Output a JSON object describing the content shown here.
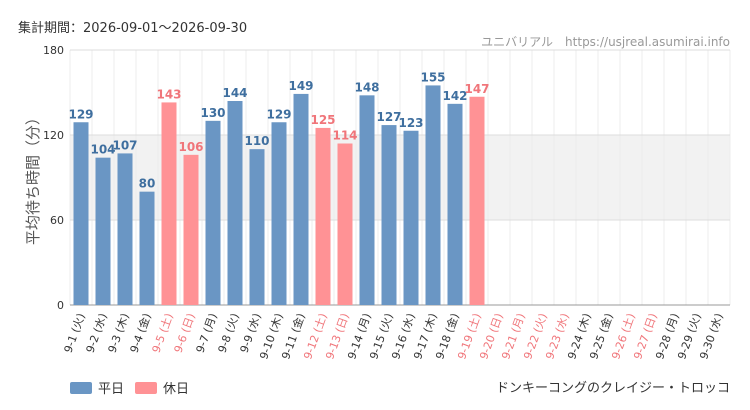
{
  "header": {
    "period": "集計期間：2026-09-01～2026-09-30",
    "site": "ユニバリアル　https://usjreal.asumirai.info"
  },
  "attraction": "ドンキーコングのクレイジー・トロッコ",
  "legend": {
    "weekday": {
      "label": "平日",
      "color": "#6a96c4"
    },
    "holiday": {
      "label": "休日",
      "color": "#ff9295"
    }
  },
  "colors": {
    "weekday_label": "#3f6f9f",
    "holiday_label": "#f0757a",
    "band": "#f2f2f2",
    "grid": "#dddddd"
  },
  "chart_data": {
    "type": "bar",
    "ylabel": "平均待ち時間（分）",
    "ylim": [
      0,
      180
    ],
    "yticks": [
      0,
      60,
      120,
      180
    ],
    "categories": [
      "9-1 (火)",
      "9-2 (水)",
      "9-3 (木)",
      "9-4 (金)",
      "9-5 (土)",
      "9-6 (日)",
      "9-7 (月)",
      "9-8 (火)",
      "9-9 (水)",
      "9-10 (木)",
      "9-11 (金)",
      "9-12 (土)",
      "9-13 (日)",
      "9-14 (月)",
      "9-15 (火)",
      "9-16 (水)",
      "9-17 (木)",
      "9-18 (金)",
      "9-19 (土)",
      "9-20 (日)",
      "9-21 (月)",
      "9-22 (火)",
      "9-23 (水)",
      "9-24 (木)",
      "9-25 (金)",
      "9-26 (土)",
      "9-27 (日)",
      "9-28 (月)",
      "9-29 (火)",
      "9-30 (水)"
    ],
    "values": [
      129,
      104,
      107,
      80,
      143,
      106,
      130,
      144,
      110,
      129,
      149,
      125,
      114,
      148,
      127,
      123,
      155,
      142,
      147,
      null,
      null,
      null,
      null,
      null,
      null,
      null,
      null,
      null,
      null,
      null
    ],
    "day_type": [
      "weekday",
      "weekday",
      "weekday",
      "weekday",
      "holiday",
      "holiday",
      "weekday",
      "weekday",
      "weekday",
      "weekday",
      "weekday",
      "holiday",
      "holiday",
      "weekday",
      "weekday",
      "weekday",
      "weekday",
      "weekday",
      "holiday",
      "holiday",
      "holiday",
      "holiday",
      "holiday",
      "weekday",
      "weekday",
      "holiday",
      "holiday",
      "weekday",
      "weekday",
      "weekday"
    ],
    "band": [
      60,
      120
    ]
  }
}
